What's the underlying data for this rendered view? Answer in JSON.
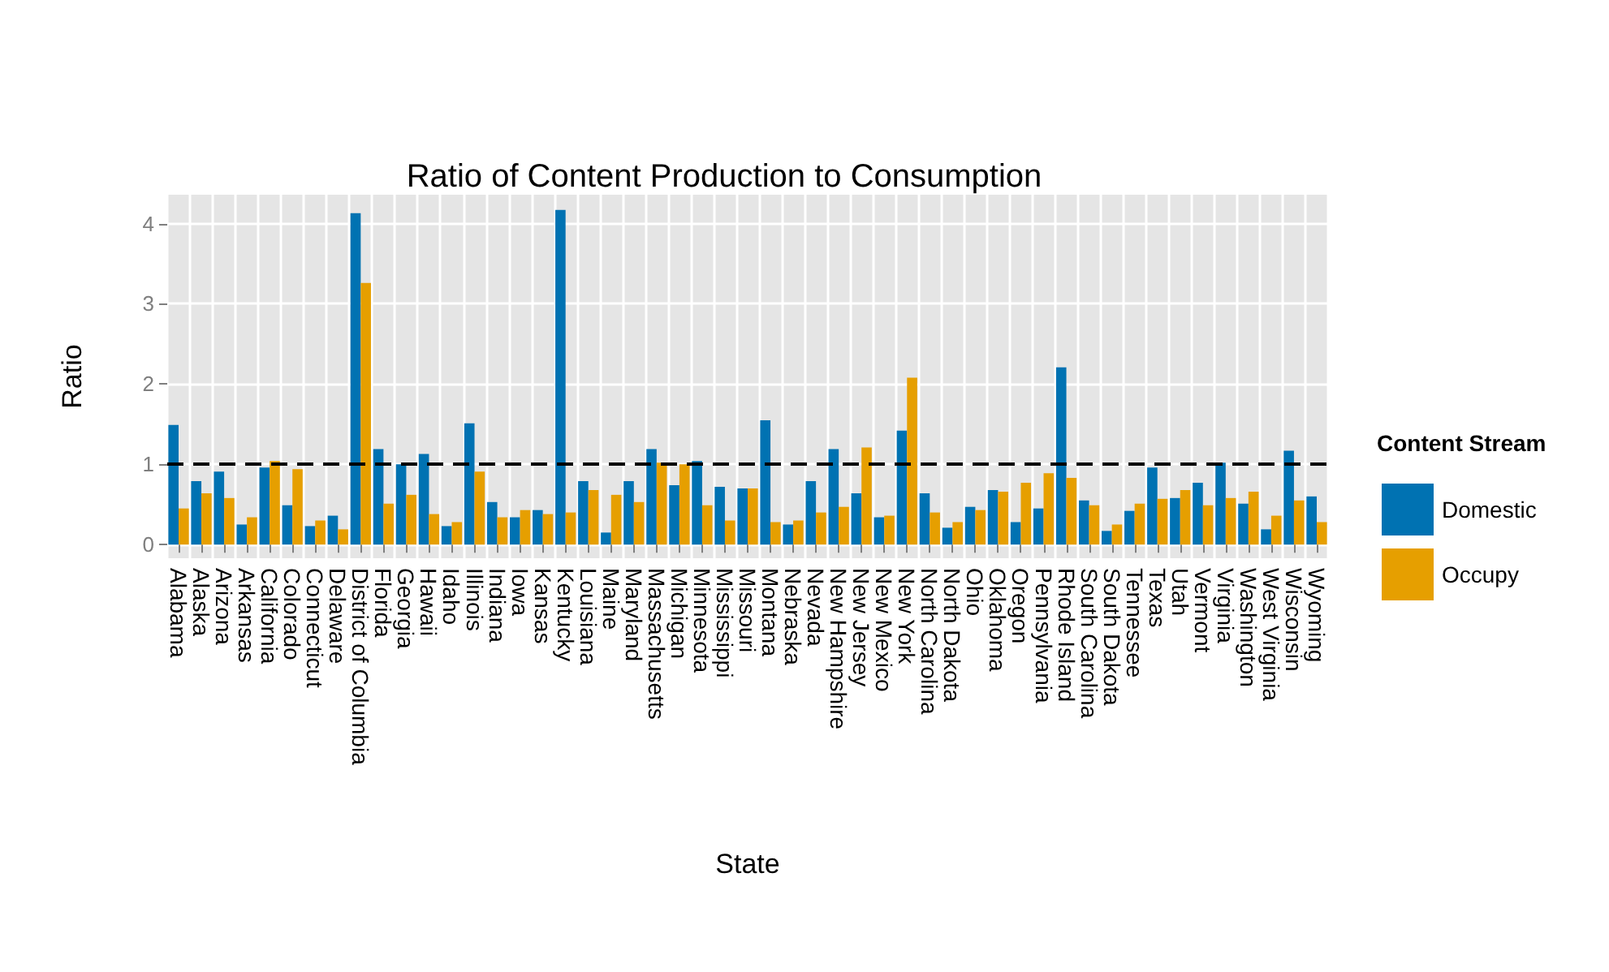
{
  "chart_data": {
    "type": "bar",
    "title": "Ratio of Content Production to Consumption",
    "xlabel": "State",
    "ylabel": "Ratio",
    "legend_title": "Content Stream",
    "categories": [
      "Alabama",
      "Alaska",
      "Arizona",
      "Arkansas",
      "California",
      "Colorado",
      "Connecticut",
      "Delaware",
      "District of Columbia",
      "Florida",
      "Georgia",
      "Hawaii",
      "Idaho",
      "Illinois",
      "Indiana",
      "Iowa",
      "Kansas",
      "Kentucky",
      "Louisiana",
      "Maine",
      "Maryland",
      "Massachusetts",
      "Michigan",
      "Minnesota",
      "Mississippi",
      "Missouri",
      "Montana",
      "Nebraska",
      "Nevada",
      "New Hampshire",
      "New Jersey",
      "New Mexico",
      "New York",
      "North Carolina",
      "North Dakota",
      "Ohio",
      "Oklahoma",
      "Oregon",
      "Pennsylvania",
      "Rhode Island",
      "South Carolina",
      "South Dakota",
      "Tennessee",
      "Texas",
      "Utah",
      "Vermont",
      "Virginia",
      "Washington",
      "West Virginia",
      "Wisconsin",
      "Wyoming"
    ],
    "series": [
      {
        "name": "Domestic",
        "color": "#0072b2",
        "values": [
          1.49,
          0.79,
          0.91,
          0.25,
          0.96,
          0.49,
          0.23,
          0.36,
          4.13,
          1.19,
          1.0,
          1.13,
          0.23,
          1.51,
          0.53,
          0.34,
          0.43,
          4.17,
          0.79,
          0.15,
          0.79,
          1.19,
          0.74,
          1.04,
          0.72,
          0.7,
          1.55,
          0.25,
          0.79,
          1.19,
          0.64,
          0.34,
          1.42,
          0.64,
          0.21,
          0.47,
          0.68,
          0.28,
          0.45,
          2.21,
          0.55,
          0.17,
          0.42,
          0.96,
          0.58,
          0.77,
          1.02,
          0.51,
          0.19,
          1.17,
          0.6
        ]
      },
      {
        "name": "Occupy",
        "color": "#e69f00",
        "values": [
          0.45,
          0.64,
          0.58,
          0.34,
          1.04,
          0.94,
          0.3,
          0.19,
          3.26,
          0.51,
          0.62,
          0.38,
          0.28,
          0.91,
          0.34,
          0.43,
          0.38,
          0.4,
          0.68,
          0.62,
          0.53,
          1.02,
          1.0,
          0.49,
          0.3,
          0.7,
          0.28,
          0.3,
          0.4,
          0.47,
          1.21,
          0.36,
          2.08,
          0.4,
          0.28,
          0.43,
          0.66,
          0.77,
          0.89,
          0.83,
          0.49,
          0.25,
          0.51,
          0.57,
          0.68,
          0.49,
          0.58,
          0.66,
          0.36,
          0.55,
          0.28
        ]
      }
    ],
    "ylim": [
      -0.17,
      4.36
    ],
    "yticks": [
      0,
      1,
      2,
      3,
      4
    ],
    "grid": true,
    "legend": "right",
    "ref_lines": [
      {
        "axis": "y",
        "value": 1,
        "color": "#000000",
        "line_style": "dashed"
      }
    ]
  }
}
